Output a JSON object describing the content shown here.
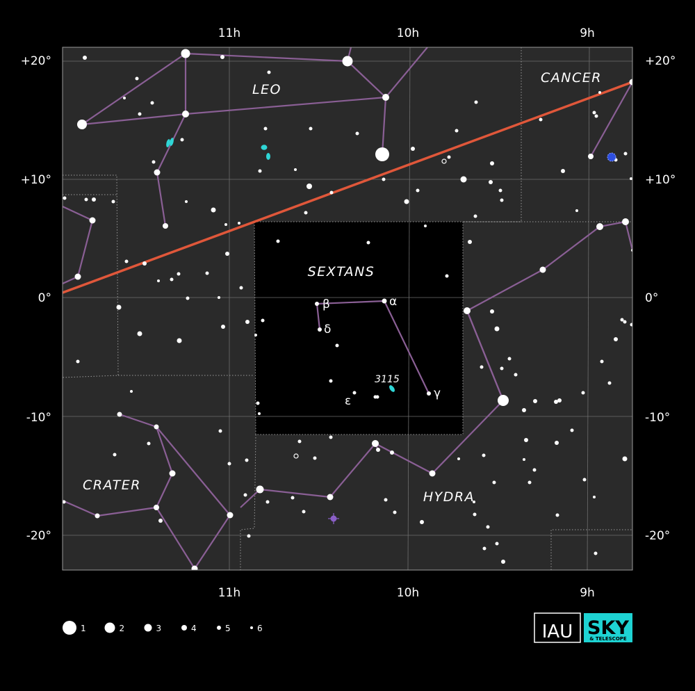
{
  "colors": {
    "background": "#000000",
    "field": "#2a2a2a",
    "focus_field": "#000000",
    "grid": "#6e6e6e",
    "boundary": "#9a9a9a",
    "stick_figure": "#8a5f95",
    "ecliptic": "#e0573a",
    "galaxy": "#2fd6d6",
    "star": "#ffffff",
    "planetary_nebula": "#8a5fc7",
    "open_cluster": "#2e4fe0",
    "sky_badge": "#1ed3d3"
  },
  "axes": {
    "ra_labels": [
      "11h",
      "10h",
      "9h"
    ],
    "dec_labels": [
      "+20°",
      "+10°",
      "0°",
      "-10°",
      "-20°"
    ]
  },
  "constellations": [
    "LEO",
    "CANCER",
    "SEXTANS",
    "CRATER",
    "HYDRA"
  ],
  "star_labels": [
    "β",
    "α",
    "δ",
    "ε",
    "γ"
  ],
  "deep_sky_label": "3115",
  "legend": {
    "magnitudes": [
      "1",
      "2",
      "3",
      "4",
      "5",
      "6"
    ]
  },
  "logos": {
    "iau": "IAU",
    "sky": "SKY",
    "sky_sub": "& TELESCOPE"
  }
}
